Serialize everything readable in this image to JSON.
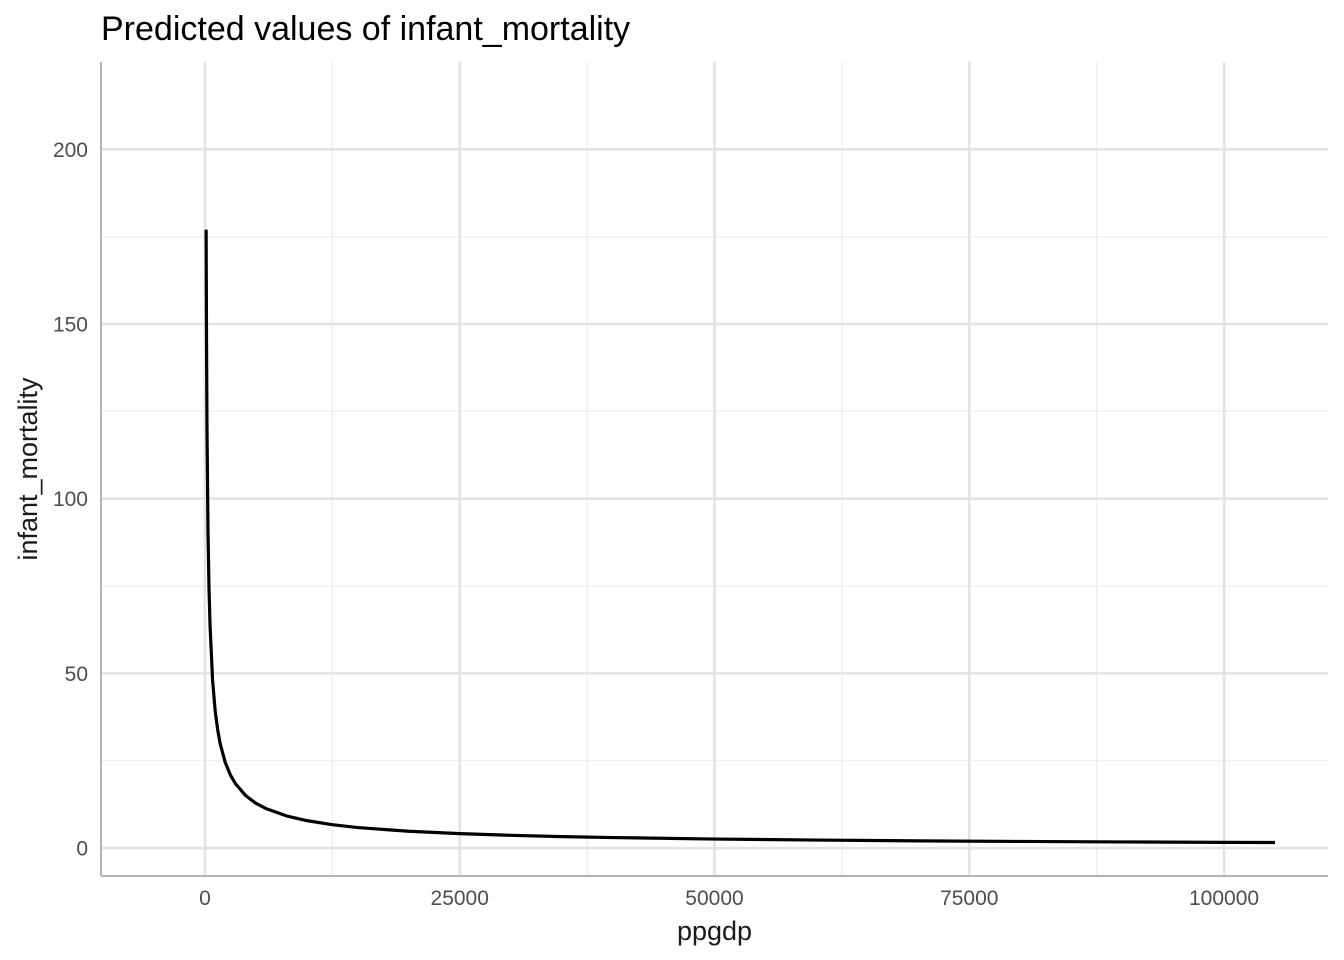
{
  "chart_data": {
    "type": "line",
    "title": "Predicted values of infant_mortality",
    "xlabel": "ppgdp",
    "ylabel": "infant_mortality",
    "xlim": [
      -10200,
      110200
    ],
    "ylim": [
      -8,
      225
    ],
    "x_ticks": [
      0,
      25000,
      50000,
      75000,
      100000
    ],
    "x_tick_labels": [
      "0",
      "25000",
      "50000",
      "75000",
      "100000"
    ],
    "x_minor_ticks": [
      12500,
      37500,
      62500,
      87500
    ],
    "y_ticks": [
      0,
      50,
      100,
      150,
      200
    ],
    "y_tick_labels": [
      "0",
      "50",
      "100",
      "150",
      "200"
    ],
    "y_minor_ticks": [
      25,
      75,
      125,
      175
    ],
    "grid": true,
    "legend": "none",
    "colors": {
      "line": "#000000",
      "ribbon": "#bdbdbd",
      "grid_major": "#e3e3e3",
      "grid_minor": "#efefef",
      "axis": "#b3b3b3"
    },
    "series": [
      {
        "x": [
          114.8,
          150,
          200,
          300,
          400,
          500,
          750,
          1000,
          1250,
          1500,
          2000,
          2500,
          3000,
          4000,
          5000,
          6000,
          8000,
          10000,
          12500,
          15000,
          20000,
          25000,
          30000,
          35000,
          40000,
          50000,
          60000,
          70000,
          80000,
          90000,
          100000,
          105000
        ],
        "y": [
          177,
          148,
          120,
          90.4,
          74.2,
          63.8,
          48.0,
          39.4,
          33.8,
          29.8,
          24.4,
          20.9,
          18.4,
          15.0,
          12.8,
          11.3,
          9.2,
          7.85,
          6.69,
          5.87,
          4.8,
          4.12,
          3.64,
          3.28,
          3.0,
          2.58,
          2.29,
          2.06,
          1.89,
          1.75,
          1.63,
          1.58
        ],
        "lower": [
          171,
          143,
          116,
          87.5,
          71.9,
          61.8,
          46.5,
          38.2,
          32.7,
          28.8,
          23.6,
          20.2,
          17.8,
          14.5,
          12.4,
          10.9,
          8.9,
          7.6,
          6.47,
          5.68,
          4.64,
          3.98,
          3.52,
          3.17,
          2.9,
          2.49,
          2.21,
          1.99,
          1.83,
          1.69,
          1.58,
          1.53
        ],
        "upper": [
          183,
          153,
          124,
          93.4,
          76.6,
          65.9,
          49.6,
          40.7,
          34.9,
          30.8,
          25.2,
          21.6,
          19.0,
          15.5,
          13.2,
          11.7,
          9.51,
          8.11,
          6.91,
          6.07,
          4.96,
          4.26,
          3.76,
          3.39,
          3.1,
          2.67,
          2.37,
          2.13,
          1.95,
          1.81,
          1.68,
          1.63
        ]
      }
    ]
  }
}
